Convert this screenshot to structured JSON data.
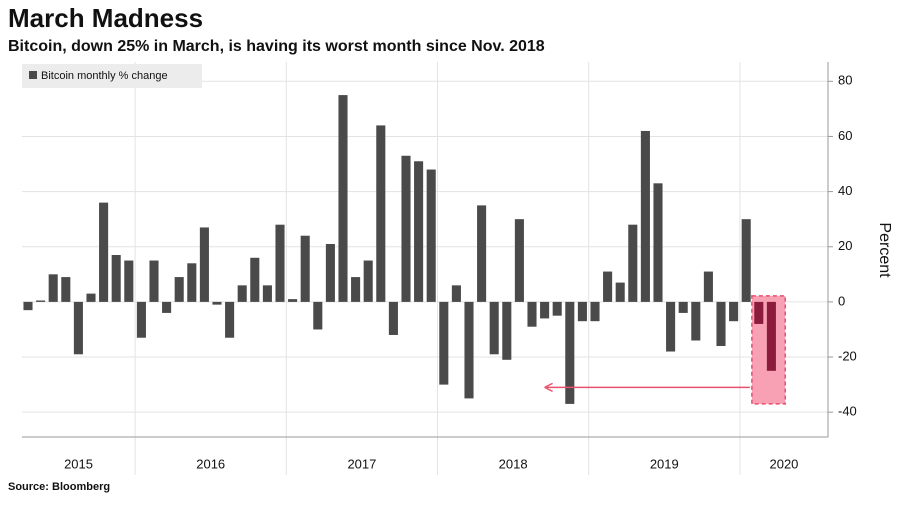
{
  "chart_data": {
    "type": "bar",
    "title": "March Madness",
    "subtitle": "Bitcoin, down 25% in March, is having its worst month since Nov. 2018",
    "source": "Source: Bloomberg",
    "y_axis_label": "Percent",
    "categories": [
      "2015",
      null,
      null,
      null,
      null,
      null,
      null,
      null,
      null,
      "2016",
      null,
      null,
      null,
      null,
      null,
      null,
      null,
      null,
      null,
      null,
      null,
      "2017",
      null,
      null,
      null,
      null,
      null,
      null,
      null,
      null,
      null,
      null,
      null,
      "2018",
      null,
      null,
      null,
      null,
      null,
      null,
      null,
      null,
      null,
      null,
      null,
      "2019",
      null,
      null,
      null,
      null,
      null,
      null,
      null,
      null,
      null,
      null,
      null,
      "2020",
      null,
      null
    ],
    "series": [
      {
        "name": "Bitcoin monthly % change",
        "color": "#4a4a4a",
        "highlight_color": "#8b1c3c",
        "values": [
          -3,
          0.5,
          10,
          9,
          -19,
          3,
          36,
          17,
          15,
          -13,
          15,
          -4,
          9,
          14,
          27,
          -1,
          -13,
          6,
          16,
          6,
          28,
          1,
          24,
          -10,
          21,
          75,
          9,
          15,
          64,
          -12,
          53,
          51,
          48,
          -30,
          6,
          -35,
          35,
          -19,
          -21,
          30,
          -9,
          -6,
          -5,
          -37,
          -7,
          -7,
          11,
          7,
          28,
          62,
          43,
          -18,
          -4,
          -14,
          11,
          -16,
          -7,
          30,
          -8,
          -25
        ]
      }
    ],
    "ylim": [
      -49,
      87
    ],
    "yticks": [
      -40,
      -20,
      0,
      20,
      40,
      60,
      80
    ],
    "grid": true
  }
}
